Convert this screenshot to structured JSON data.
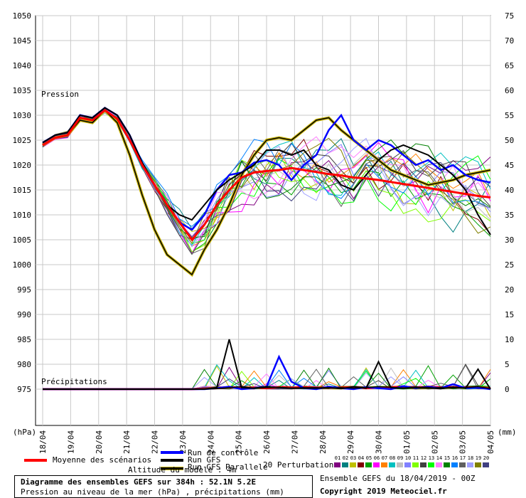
{
  "chart_data": {
    "type": "line",
    "title": "Diagramme des ensembles GEFS sur 384h : 52.1N 5.2E",
    "subtitle": "Pression au niveau de la mer (hPa) , précipitations (mm)",
    "run_info": "Ensemble GEFS du 18/04/2019 - 00Z",
    "copyright": "Copyright 2019 Meteociel.fr",
    "ylabel_left": "(hPa)",
    "ylabel_right": "(mm)",
    "panel_pressure_label": "Pression",
    "panel_precip_label": "Précipitations",
    "ylim_left": [
      975,
      1050
    ],
    "left_ticks": [
      1050,
      1045,
      1040,
      1035,
      1030,
      1025,
      1020,
      1015,
      1010,
      1005,
      1000,
      995,
      990,
      985,
      980,
      975
    ],
    "right_ticks": [
      75,
      70,
      65,
      60,
      55,
      50,
      45,
      40,
      35,
      30,
      25,
      20,
      15,
      10,
      5,
      0
    ],
    "x_ticks": [
      "18/04",
      "19/04",
      "20/04",
      "21/04",
      "22/04",
      "23/04",
      "24/04",
      "25/04",
      "26/04",
      "27/04",
      "28/04",
      "29/04",
      "30/04",
      "01/05",
      "02/05",
      "03/05",
      "04/05"
    ],
    "grid": true,
    "time_step_hours": 6,
    "series": [
      {
        "name": "Moyenne des scénarios",
        "color": "#ff0000",
        "values": [
          1024,
          1025.5,
          1026,
          1029.5,
          1029,
          1031,
          1029.3,
          1025,
          1020,
          1016,
          1012,
          1008.5,
          1005,
          1008,
          1012,
          1015,
          1017.5,
          1018.5,
          1018.8,
          1019,
          1019.4,
          1019,
          1018.6,
          1018.2,
          1017.9,
          1017.5,
          1017.3,
          1017,
          1016.6,
          1016.2,
          1015.8,
          1015.4,
          1015,
          1014.6,
          1014.2,
          1013.8,
          1013.5
        ]
      },
      {
        "name": "Run de contrôle",
        "color": "#0000ff",
        "values": [
          1024.5,
          1026,
          1026.5,
          1030,
          1029.5,
          1031.5,
          1030,
          1026,
          1020.5,
          1016,
          1012,
          1008.5,
          1007,
          1010,
          1015,
          1018,
          1018.5,
          1020.5,
          1021,
          1020,
          1017,
          1020,
          1022,
          1027,
          1030,
          1025,
          1023,
          1025,
          1024,
          1022,
          1020,
          1021,
          1019,
          1020,
          1018,
          1017,
          1016.5
        ]
      },
      {
        "name": "Run GFS",
        "color": "#000000",
        "values": [
          1024.5,
          1026,
          1026.5,
          1030,
          1029.5,
          1031.5,
          1030,
          1026,
          1020.5,
          1016,
          1012,
          1010,
          1009,
          1012,
          1015,
          1017,
          1018.5,
          1020,
          1023,
          1023,
          1022,
          1023,
          1020,
          1019,
          1016,
          1015,
          1018,
          1021,
          1023,
          1024,
          1023,
          1022,
          1020,
          1018,
          1015,
          1010,
          1006
        ]
      },
      {
        "name": "Run GFS Parallele",
        "color": "#000000",
        "values": [
          1024,
          1025.5,
          1026,
          1029,
          1028.5,
          1031,
          1028.5,
          1022,
          1014,
          1007,
          1002,
          1000,
          998,
          1003,
          1007,
          1012,
          1018,
          1022,
          1025,
          1025.5,
          1025,
          1027,
          1029,
          1029.5,
          1027,
          1025,
          1023,
          1021,
          1019,
          1018,
          1017,
          1016,
          1016.5,
          1017,
          1018,
          1018.5,
          1019
        ]
      }
    ],
    "precip_series": [
      {
        "name": "Moyenne des scénarios",
        "color": "#ff0000",
        "values": [
          0,
          0,
          0,
          0,
          0,
          0,
          0,
          0,
          0,
          0,
          0,
          0,
          0,
          0.1,
          0.2,
          0.4,
          0.3,
          0.3,
          0.2,
          0.4,
          0.3,
          0.4,
          0.3,
          0.3,
          0.3,
          0.4,
          0.2,
          0.3,
          0.4,
          0.5,
          0.3,
          0.5,
          0.3,
          0.4,
          0.3,
          0.4,
          0.2
        ]
      },
      {
        "name": "Run de contrôle",
        "color": "#0000ff",
        "values": [
          0,
          0,
          0,
          0,
          0,
          0,
          0,
          0,
          0,
          0,
          0,
          0,
          0,
          0,
          0.2,
          0.5,
          0,
          0.2,
          0.5,
          6.5,
          1.5,
          0.2,
          0,
          0.5,
          0.2,
          0,
          0.4,
          0.2,
          0,
          0.6,
          0.2,
          0.5,
          0.2,
          1,
          0.2,
          0.3,
          0
        ]
      },
      {
        "name": "Run GFS",
        "color": "#000000",
        "values": [
          0,
          0,
          0,
          0,
          0,
          0,
          0,
          0,
          0,
          0,
          0,
          0,
          0,
          0,
          0.3,
          10,
          0.3,
          0.2,
          0.5,
          0.3,
          0.2,
          0.2,
          0.2,
          0.3,
          0.1,
          0.5,
          0.2,
          5.5,
          0.3,
          0.2,
          0.4,
          0.3,
          0.1,
          0.4,
          0.2,
          4,
          0
        ]
      },
      {
        "name": "Run GFS Parallele",
        "color": "#000000",
        "values": [
          0,
          0,
          0,
          0,
          0,
          0,
          0,
          0,
          0,
          0,
          0,
          0,
          0,
          0,
          0.1,
          0.3,
          0.5,
          0.2,
          0.3,
          0.4,
          0.2,
          0.3,
          0.3,
          0.2,
          0.3,
          0.2,
          0.3,
          0.5,
          0.4,
          0.2,
          0.3,
          0.2,
          0.3,
          0.2,
          0.3,
          0.5,
          0.1
        ]
      }
    ],
    "perturbations": {
      "label": "20 Perturbations",
      "names": [
        "01",
        "02",
        "03",
        "04",
        "05",
        "06",
        "07",
        "08",
        "09",
        "10",
        "11",
        "12",
        "13",
        "14",
        "15",
        "16",
        "17",
        "18",
        "19",
        "20"
      ],
      "colors": [
        "#800080",
        "#008080",
        "#c0c000",
        "#800000",
        "#00a000",
        "#ff00ff",
        "#ff8000",
        "#00c0c0",
        "#c0c0c0",
        "#8080ff",
        "#80ff00",
        "#404040",
        "#00ff00",
        "#ff80ff",
        "#008000",
        "#0080ff",
        "#606060",
        "#a0a0ff",
        "#808000",
        "#404080"
      ]
    },
    "legend": [
      "Moyenne des scénarios",
      "Run de contrôle",
      "Run GFS",
      "Run GFS Parallele"
    ],
    "legend_extra": "Altitude du modèle : 4m"
  }
}
